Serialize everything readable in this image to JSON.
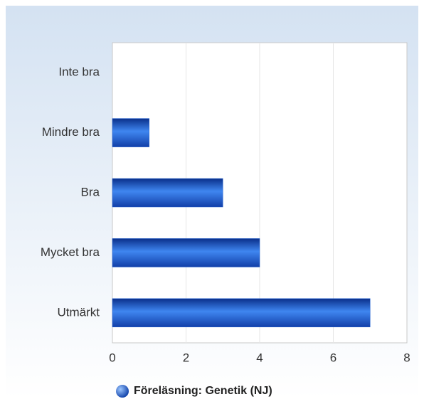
{
  "chart_data": {
    "type": "bar",
    "orientation": "horizontal",
    "categories": [
      "Inte bra",
      "Mindre bra",
      "Bra",
      "Mycket bra",
      "Utmärkt"
    ],
    "series": [
      {
        "name": "Föreläsning: Genetik (NJ)",
        "color": "#1f5fd0",
        "values": [
          0,
          1,
          3,
          4,
          7
        ]
      }
    ],
    "xlim": [
      0,
      8
    ],
    "xticks": [
      0,
      2,
      4,
      6,
      8
    ],
    "grid": true,
    "legend": "bottom"
  }
}
